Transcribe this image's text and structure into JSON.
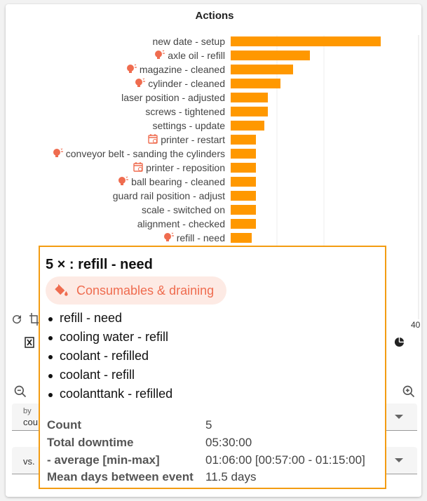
{
  "chart_data": {
    "type": "bar",
    "orientation": "horizontal",
    "title": "Actions",
    "categories": [
      "new date - setup",
      "axle oil - refill",
      "magazine - cleaned",
      "cylinder - cleaned",
      "laser position - adjusted",
      "screws - tightened",
      "settings - update",
      "printer - restart",
      "conveyor belt - sanding the cylinders",
      "printer - reposition",
      "ball bearing - cleaned",
      "guard rail position - adjust",
      "scale - switched on",
      "alignment - checked",
      "refill - need"
    ],
    "icons": [
      "",
      "bulb-icon",
      "bulb-icon",
      "bulb-icon",
      "",
      "",
      "",
      "calendar-icon",
      "bulb-icon",
      "calendar-icon",
      "bulb-icon",
      "",
      "",
      "",
      "bulb-icon"
    ],
    "values": [
      36,
      19,
      15,
      12,
      9,
      9,
      8,
      6,
      6,
      6,
      6,
      6,
      6,
      6,
      5
    ],
    "xlim": [
      0,
      40
    ],
    "x_ticks": [
      "40"
    ],
    "faded_ticks": [
      "20",
      "30",
      "40"
    ],
    "bar_color": "#ff9800"
  },
  "fields": {
    "by_label": "by",
    "by_value": "cou",
    "vs_value": "vs."
  },
  "tooltip": {
    "title": "5 × : refill - need",
    "category": "Consumables & draining",
    "category_color": "#ef6c4f",
    "items": [
      "refill - need",
      "cooling water - refill",
      "coolant - refilled",
      "coolant - refill",
      "coolanttank - refilled"
    ],
    "stats": [
      {
        "key": "Count",
        "value": "5"
      },
      {
        "key": "Total downtime",
        "value": "05:30:00"
      },
      {
        "key": "- average [min-max]",
        "value": "01:06:00 [00:57:00 - 01:15:00]"
      },
      {
        "key": "Mean days between event",
        "value": "11.5 days"
      }
    ]
  }
}
